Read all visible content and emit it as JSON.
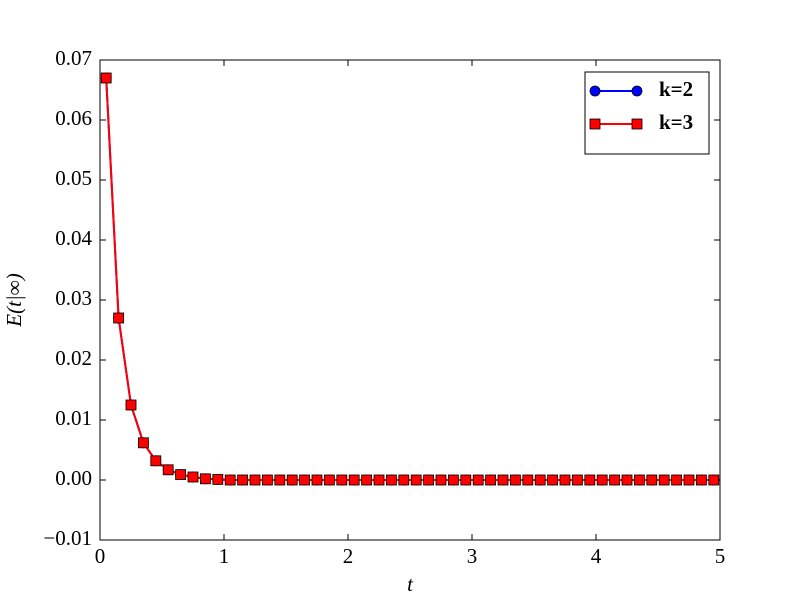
{
  "chart_data": {
    "type": "line",
    "xlabel": "t",
    "ylabel": "E(t|∞)",
    "x": [
      0.05,
      0.15,
      0.25,
      0.35,
      0.45,
      0.55,
      0.65,
      0.75,
      0.85,
      0.95,
      1.05,
      1.15,
      1.25,
      1.35,
      1.45,
      1.55,
      1.65,
      1.75,
      1.85,
      1.95,
      2.05,
      2.15,
      2.25,
      2.35,
      2.45,
      2.55,
      2.65,
      2.75,
      2.85,
      2.95,
      3.05,
      3.15,
      3.25,
      3.35,
      3.45,
      3.55,
      3.65,
      3.75,
      3.85,
      3.95,
      4.05,
      4.15,
      4.25,
      4.35,
      4.45,
      4.55,
      4.65,
      4.75,
      4.85,
      4.95
    ],
    "series": [
      {
        "name": "k=2",
        "color": "#0000ff",
        "marker": "circle",
        "values": [
          0.067,
          0.027,
          0.0125,
          0.0062,
          0.0032,
          0.0017,
          0.0009,
          0.0005,
          0.0002,
          0.0001,
          0,
          0,
          0,
          0,
          0,
          0,
          0,
          0,
          0,
          0,
          0,
          0,
          0,
          0,
          0,
          0,
          0,
          0,
          0,
          0,
          0,
          0,
          0,
          0,
          0,
          0,
          0,
          0,
          0,
          0,
          0,
          0,
          0,
          0,
          0,
          0,
          0,
          0,
          0,
          0
        ]
      },
      {
        "name": "k=3",
        "color": "#ff0000",
        "marker": "square",
        "values": [
          0.067,
          0.027,
          0.0125,
          0.0062,
          0.0032,
          0.0017,
          0.0009,
          0.0005,
          0.0002,
          0.0001,
          0,
          0,
          0,
          0,
          0,
          0,
          0,
          0,
          0,
          0,
          0,
          0,
          0,
          0,
          0,
          0,
          0,
          0,
          0,
          0,
          0,
          0,
          0,
          0,
          0,
          0,
          0,
          0,
          0,
          0,
          0,
          0,
          0,
          0,
          0,
          0,
          0,
          0,
          0,
          0
        ]
      }
    ],
    "xlim": [
      0,
      5
    ],
    "xticks": [
      0,
      1,
      2,
      3,
      4,
      5
    ],
    "ylim": [
      -0.01,
      0.07
    ],
    "yticks": [
      {
        "value": -0.01,
        "label": "−0.01"
      },
      {
        "value": 0,
        "label": "0.00"
      },
      0.01,
      0.02,
      0.03,
      0.04,
      0.05,
      0.06,
      0.07
    ],
    "legend": "upper right"
  }
}
